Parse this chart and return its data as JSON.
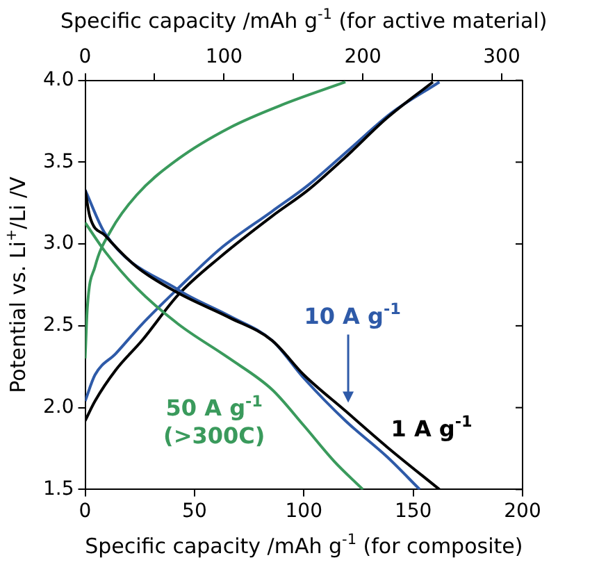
{
  "chart_data": {
    "type": "line",
    "xlabel": "Specific capacity /mAh g$^{-1}$ (for composite)",
    "x2label": "Specific capacity /mAh g$^{-1}$ (for active material)",
    "ylabel": "Potential vs. Li$^{+}$/Li /V",
    "xlim": [
      0,
      200
    ],
    "xticks": [
      0,
      50,
      100,
      150,
      200
    ],
    "x2lim": [
      0,
      315
    ],
    "x2ticks": [
      0,
      {
        "value": 50,
        "label": null
      },
      100,
      {
        "value": 150,
        "label": null
      },
      200,
      {
        "value": 250,
        "label": null
      },
      300
    ],
    "ylim": [
      1.5,
      4.0
    ],
    "yticks": [
      {
        "value": 1.5,
        "label": "1.5"
      },
      {
        "value": 2,
        "label": "2.0"
      },
      {
        "value": 2.5,
        "label": "2.5"
      },
      {
        "value": 3,
        "label": "3.0"
      },
      {
        "value": 3.5,
        "label": "3.5"
      },
      {
        "value": 4,
        "label": "4.0"
      }
    ],
    "grid": false,
    "legend": false,
    "marker": "none",
    "line_style": "solid",
    "series": [
      {
        "name": "1 A g$^{-1}$",
        "color": "#000000",
        "x": [
          0,
          2.1,
          9.3,
          23.6,
          42.6,
          66,
          85.5,
          100,
          119,
          138,
          162
        ],
        "values": [
          3.33,
          3.17,
          3.05,
          2.86,
          2.7,
          2.55,
          2.41,
          2.2,
          1.98,
          1.76,
          1.5
        ]
      },
      {
        "name": "10 A g$^{-1}$",
        "color": "#2e5aa8",
        "x": [
          0,
          9.3,
          42.6,
          66,
          85.5,
          100,
          119,
          138,
          153
        ],
        "values": [
          3.33,
          3.06,
          2.72,
          2.56,
          2.41,
          2.18,
          1.92,
          1.7,
          1.5
        ]
      },
      {
        "name": "50 A g$^{-1}$\n(>300C)",
        "color": "#3a9a5c",
        "x": [
          0,
          9.3,
          23.6,
          42.6,
          66,
          85.5,
          100,
          114,
          127
        ],
        "values": [
          3.13,
          2.95,
          2.73,
          2.51,
          2.3,
          2.11,
          1.89,
          1.67,
          1.5
        ]
      },
      {
        "color": "#000000",
        "x": [
          0,
          4.5,
          14,
          26,
          42.6,
          61.7,
          85.5,
          102,
          119,
          138,
          159
        ],
        "values": [
          1.92,
          2.04,
          2.23,
          2.41,
          2.69,
          2.92,
          3.17,
          3.33,
          3.53,
          3.77,
          3.99
        ]
      },
      {
        "color": "#2e5aa8",
        "x": [
          0,
          4.5,
          14,
          26,
          42.6,
          61.7,
          85.5,
          102,
          121,
          140,
          162
        ],
        "values": [
          2.04,
          2.2,
          2.33,
          2.51,
          2.73,
          2.97,
          3.2,
          3.36,
          3.58,
          3.8,
          3.99
        ]
      },
      {
        "color": "#3a9a5c",
        "x": [
          0,
          1,
          4.5,
          11.7,
          23.6,
          42.6,
          66,
          90,
          119
        ],
        "values": [
          2.3,
          2.61,
          2.86,
          3.08,
          3.3,
          3.52,
          3.71,
          3.85,
          3.99
        ]
      }
    ]
  }
}
